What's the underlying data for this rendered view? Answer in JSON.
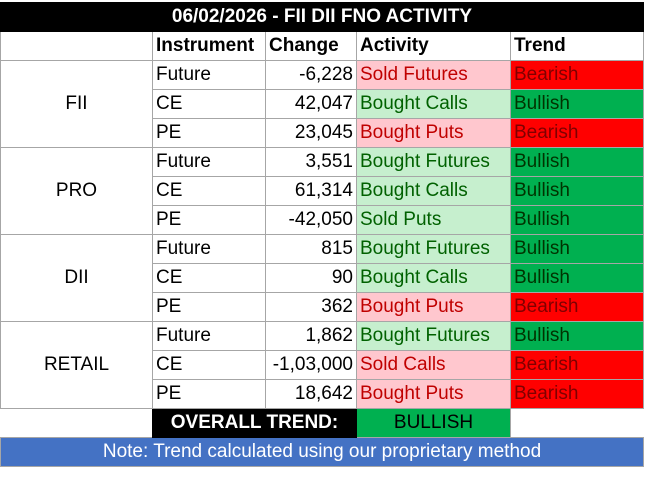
{
  "title": "06/02/2026 - FII DII FNO ACTIVITY",
  "headers": {
    "instrument": "Instrument",
    "change": "Change",
    "activity": "Activity",
    "trend": "Trend"
  },
  "groups": [
    {
      "name": "FII",
      "rows": [
        {
          "instrument": "Future",
          "change": "-6,228",
          "activity": "Sold Futures",
          "activity_type": "sell",
          "trend": "Bearish"
        },
        {
          "instrument": "CE",
          "change": "42,047",
          "activity": "Bought Calls",
          "activity_type": "buy",
          "trend": "Bullish"
        },
        {
          "instrument": "PE",
          "change": "23,045",
          "activity": "Bought Puts",
          "activity_type": "sell",
          "trend": "Bearish"
        }
      ]
    },
    {
      "name": "PRO",
      "rows": [
        {
          "instrument": "Future",
          "change": "3,551",
          "activity": "Bought Futures",
          "activity_type": "buy",
          "trend": "Bullish"
        },
        {
          "instrument": "CE",
          "change": "61,314",
          "activity": "Bought Calls",
          "activity_type": "buy",
          "trend": "Bullish"
        },
        {
          "instrument": "PE",
          "change": "-42,050",
          "activity": "Sold Puts",
          "activity_type": "buy",
          "trend": "Bullish"
        }
      ]
    },
    {
      "name": "DII",
      "rows": [
        {
          "instrument": "Future",
          "change": "815",
          "activity": "Bought Futures",
          "activity_type": "buy",
          "trend": "Bullish"
        },
        {
          "instrument": "CE",
          "change": "90",
          "activity": "Bought Calls",
          "activity_type": "buy",
          "trend": "Bullish"
        },
        {
          "instrument": "PE",
          "change": "362",
          "activity": "Bought Puts",
          "activity_type": "sell",
          "trend": "Bearish"
        }
      ]
    },
    {
      "name": "RETAIL",
      "rows": [
        {
          "instrument": "Future",
          "change": "1,862",
          "activity": "Bought Futures",
          "activity_type": "buy",
          "trend": "Bullish"
        },
        {
          "instrument": "CE",
          "change": "-1,03,000",
          "activity": "Sold Calls",
          "activity_type": "sell",
          "trend": "Bearish"
        },
        {
          "instrument": "PE",
          "change": "18,642",
          "activity": "Bought Puts",
          "activity_type": "sell",
          "trend": "Bearish"
        }
      ]
    }
  ],
  "overall": {
    "label": "OVERALL TREND:",
    "value": "BULLISH"
  },
  "note": "Note: Trend calculated using our proprietary method",
  "colors": {
    "sell_fill": "#ffc7ce",
    "sell_text": "#c00000",
    "buy_fill": "#c6efce",
    "buy_text": "#006100",
    "bearish_fill": "#ff0000",
    "bullish_fill": "#00b050",
    "note_fill": "#4472c4",
    "title_fill": "#000000"
  }
}
